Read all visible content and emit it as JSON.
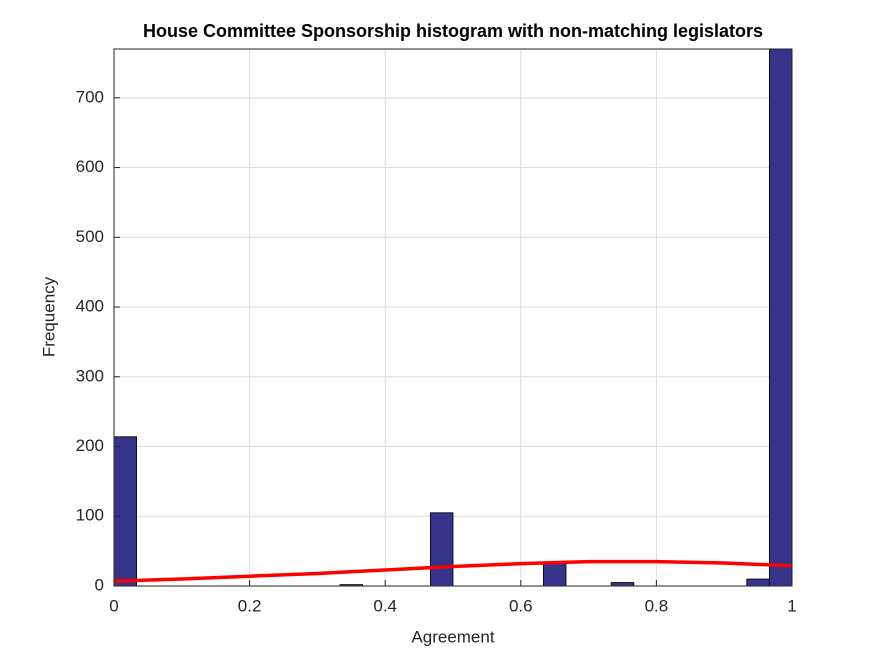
{
  "chart_data": {
    "type": "histogram",
    "title": "House Committee Sponsorship histogram with non-matching legislators",
    "xlabel": "Agreement",
    "ylabel": "Frequency",
    "bins": [
      0,
      0.0333,
      0.0667,
      0.1,
      0.1333,
      0.1667,
      0.2,
      0.2333,
      0.2667,
      0.3,
      0.3333,
      0.3667,
      0.4,
      0.4333,
      0.4667,
      0.5,
      0.5333,
      0.5667,
      0.6,
      0.6333,
      0.6667,
      0.7,
      0.7333,
      0.7667,
      0.8,
      0.8333,
      0.8667,
      0.9,
      0.9333,
      0.9667,
      1
    ],
    "counts": [
      214,
      0,
      0,
      0,
      0,
      0,
      0,
      0,
      0,
      0,
      2,
      0,
      0,
      0,
      105,
      0,
      0,
      0,
      0,
      33,
      0,
      0,
      5,
      0,
      0,
      0,
      0,
      0,
      10,
      770
    ],
    "color": "#35338a",
    "fit": {
      "color": "#ff0000",
      "x": [
        0,
        0.1,
        0.2,
        0.3,
        0.4,
        0.5,
        0.6,
        0.7,
        0.8,
        0.9,
        1
      ],
      "y": [
        7,
        10,
        14,
        18,
        23,
        28,
        32,
        35,
        35,
        33,
        29
      ]
    },
    "xlim": [
      0,
      1
    ],
    "ylim": [
      0,
      770
    ],
    "xticks": [
      0,
      0.2,
      0.4,
      0.6,
      0.8,
      1
    ],
    "yticks": [
      0,
      100,
      200,
      300,
      400,
      500,
      600,
      700
    ],
    "grid": true
  }
}
